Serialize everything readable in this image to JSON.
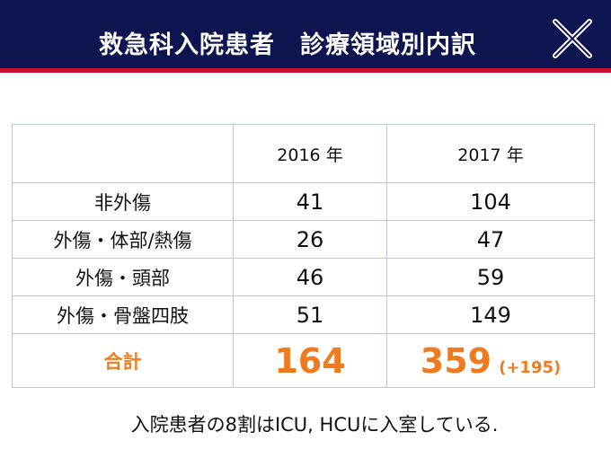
{
  "header": {
    "title": "救急科入院患者　診療領域別内訳"
  },
  "table": {
    "columns": [
      "2016 年",
      "2017 年"
    ],
    "rows": [
      [
        "非外傷",
        41,
        104
      ],
      [
        "外傷・体部/熱傷",
        26,
        47
      ],
      [
        "外傷・頭部",
        46,
        59
      ],
      [
        "外傷・骨盤四肢",
        51,
        149
      ]
    ],
    "total": {
      "label": "合計",
      "2016": 164,
      "2017": 359,
      "diff": "(+195)"
    }
  },
  "footer": {
    "note": "入院患者の8割はICU, HCUに入室している."
  }
}
